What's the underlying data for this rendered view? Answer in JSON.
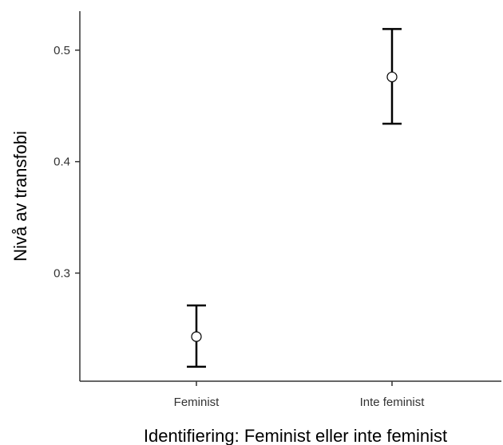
{
  "chart_data": {
    "type": "scatter",
    "title": "",
    "xlabel": "Identifiering: Feminist eller inte feminist",
    "ylabel": "Nivå av transfobi",
    "categories": [
      "Feminist",
      "Inte feminist"
    ],
    "points": [
      {
        "category": "Feminist",
        "mean": 0.243,
        "lower": 0.216,
        "upper": 0.271
      },
      {
        "category": "Inte feminist",
        "mean": 0.476,
        "lower": 0.434,
        "upper": 0.519
      }
    ],
    "y_ticks": [
      0.3,
      0.4,
      0.5
    ],
    "y_tick_labels": [
      "0.3",
      "0.4",
      "0.5"
    ],
    "ylim": [
      0.203,
      0.535
    ],
    "grid": false,
    "legend": "none",
    "colors": {
      "line": "#000000",
      "marker_fill": "#ffffff",
      "axis": "#333333"
    }
  }
}
